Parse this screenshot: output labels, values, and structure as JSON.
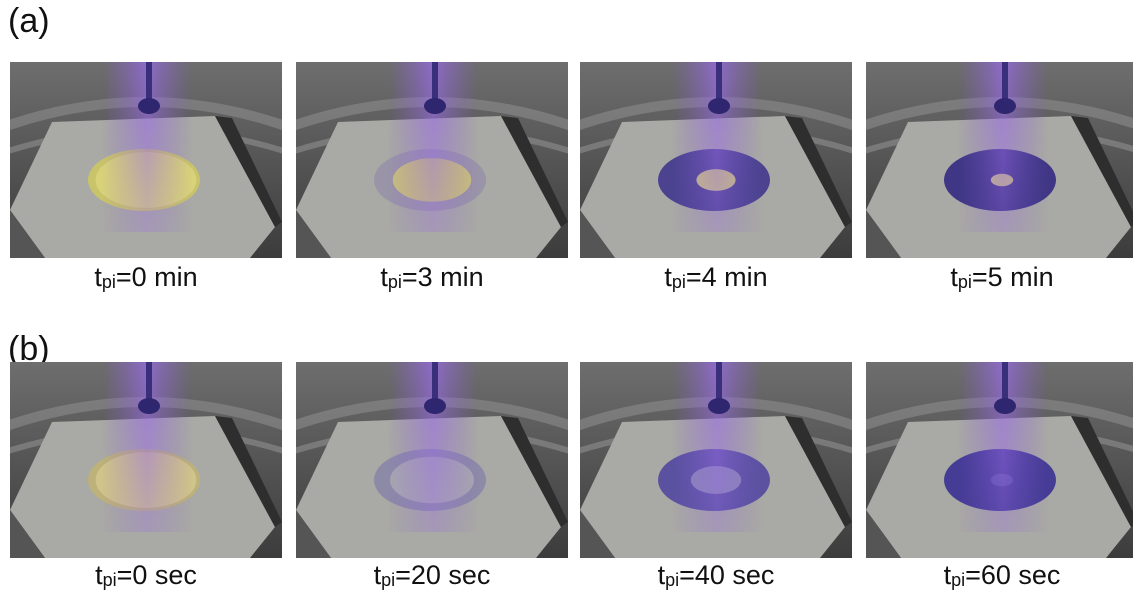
{
  "panels": [
    {
      "label": "(a)",
      "images": [
        {
          "t": "t",
          "sub": "pi",
          "rest": "=0 min"
        },
        {
          "t": "t",
          "sub": "pi",
          "rest": "=3 min"
        },
        {
          "t": "t",
          "sub": "pi",
          "rest": "=4 min"
        },
        {
          "t": "t",
          "sub": "pi",
          "rest": "=5 min"
        }
      ]
    },
    {
      "label": "(b)",
      "images": [
        {
          "t": "t",
          "sub": "pi",
          "rest": "=0 sec"
        },
        {
          "t": "t",
          "sub": "pi",
          "rest": "=20 sec"
        },
        {
          "t": "t",
          "sub": "pi",
          "rest": "=40 sec"
        },
        {
          "t": "t",
          "sub": "pi",
          "rest": "=60 sec"
        }
      ]
    }
  ]
}
